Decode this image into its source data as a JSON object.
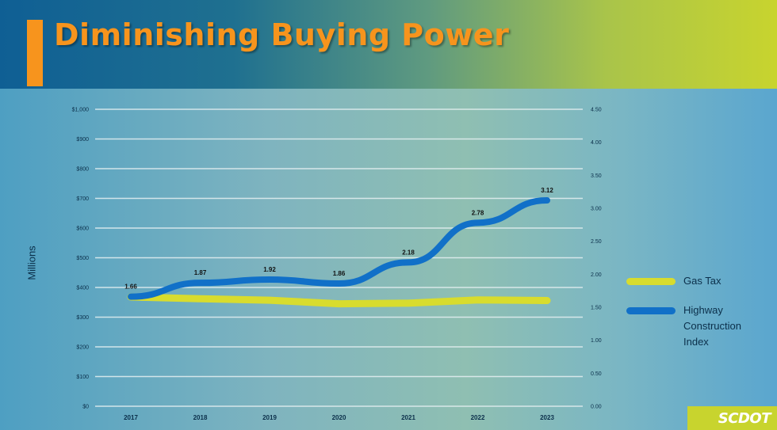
{
  "slide": {
    "title": "Diminishing Buying Power",
    "logo_text": "SCDOT"
  },
  "colors": {
    "title": "#f7941d",
    "accent_bar": "#f7941d",
    "gas_tax": "#d8dc2e",
    "highway_index": "#1170c8",
    "gridline": "#e6f0f2",
    "text": "#0b2f4a"
  },
  "chart_data": {
    "type": "line",
    "x": [
      "2017",
      "2018",
      "2019",
      "2020",
      "2021",
      "2022",
      "2023"
    ],
    "ylabel": "Millions",
    "y_left": {
      "min": 0,
      "max": 1000,
      "step": 100,
      "ticks": [
        "$0",
        "$100",
        "$200",
        "$300",
        "$400",
        "$500",
        "$600",
        "$700",
        "$800",
        "$900",
        "$1,000"
      ]
    },
    "y_right": {
      "min": 0,
      "max": 4.5,
      "step": 0.5,
      "ticks": [
        "0.00",
        "0.50",
        "1.00",
        "1.50",
        "2.00",
        "2.50",
        "3.00",
        "3.50",
        "4.00",
        "4.50"
      ]
    },
    "series": [
      {
        "name": "Gas Tax",
        "axis": "left",
        "color": "#d8dc2e",
        "values": [
          368,
          362,
          357,
          345,
          347,
          358,
          356
        ]
      },
      {
        "name": "Highway Construction Index",
        "axis": "right",
        "color": "#1170c8",
        "values": [
          1.66,
          1.87,
          1.92,
          1.86,
          2.18,
          2.78,
          3.12
        ],
        "labels": [
          "1.66",
          "1.87",
          "1.92",
          "1.86",
          "2.18",
          "2.78",
          "3.12"
        ]
      }
    ],
    "legend": {
      "position": "right",
      "items": [
        {
          "label": "Gas Tax",
          "color": "#d8dc2e"
        },
        {
          "label": "Highway Construction Index",
          "color": "#1170c8"
        }
      ]
    },
    "grid": true
  }
}
